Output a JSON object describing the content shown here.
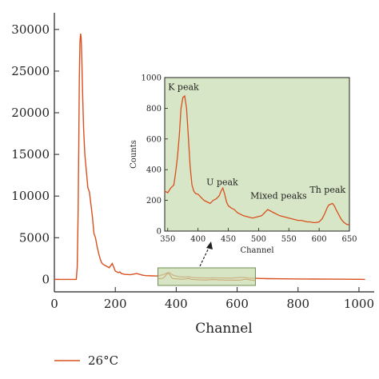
{
  "colors": {
    "series": "#d9501e",
    "inset_bg": "#d7e6c6",
    "inset_border": "#222222",
    "zoom_box_bg": "#c9dcb2",
    "zoom_box_border": "#6f8f55"
  },
  "chart_data": [
    {
      "type": "line",
      "xlabel": "Channel",
      "ylabel": "",
      "xlim": [
        0,
        1050
      ],
      "ylim": [
        -1500,
        32000
      ],
      "xticks": [
        0,
        200,
        400,
        600,
        800,
        1000
      ],
      "yticks": [
        0,
        5000,
        10000,
        15000,
        20000,
        25000,
        30000
      ],
      "xtick_labels": [
        "0",
        "200",
        "400",
        "600",
        "800",
        "1000"
      ],
      "ytick_labels": [
        "0",
        "5000",
        "10000",
        "15000",
        "20000",
        "25000",
        "30000"
      ],
      "legend": {
        "placement": "bottom-left",
        "entries": [
          "26°C"
        ]
      },
      "series": [
        {
          "name": "26°C",
          "x": [
            0,
            60,
            72,
            75,
            78,
            80,
            82,
            84,
            86,
            88,
            90,
            93,
            96,
            100,
            105,
            110,
            115,
            120,
            125,
            130,
            135,
            140,
            145,
            150,
            155,
            160,
            170,
            180,
            190,
            200,
            210,
            215,
            220,
            230,
            250,
            270,
            290,
            300,
            320,
            340,
            360,
            375,
            390,
            410,
            430,
            440,
            460,
            480,
            500,
            520,
            540,
            560,
            580,
            600,
            620,
            640,
            660,
            680,
            700,
            750,
            800,
            850,
            900,
            950,
            1000,
            1020
          ],
          "y": [
            0,
            0,
            0,
            1500,
            8000,
            16000,
            24000,
            28500,
            29500,
            29000,
            26500,
            22000,
            18000,
            15000,
            13000,
            11000,
            10500,
            9000,
            7500,
            5500,
            5000,
            4000,
            3200,
            2500,
            2000,
            1800,
            1600,
            1400,
            1900,
            1000,
            800,
            900,
            700,
            600,
            550,
            700,
            500,
            450,
            420,
            400,
            600,
            850,
            500,
            300,
            280,
            300,
            200,
            180,
            160,
            190,
            170,
            160,
            150,
            200,
            250,
            150,
            120,
            100,
            80,
            60,
            50,
            40,
            30,
            20,
            10,
            0
          ]
        }
      ],
      "zoom_region": {
        "x": [
          350,
          650
        ],
        "y": [
          0,
          1000
        ]
      }
    },
    {
      "type": "line",
      "xlabel": "Channel",
      "ylabel": "Counts",
      "xlim": [
        345,
        650
      ],
      "ylim": [
        0,
        1000
      ],
      "xticks": [
        350,
        400,
        450,
        500,
        550,
        600,
        650
      ],
      "yticks": [
        0,
        200,
        400,
        600,
        800,
        1000
      ],
      "xtick_labels": [
        "350",
        "400",
        "450",
        "500",
        "550",
        "600",
        "650"
      ],
      "ytick_labels": [
        "0",
        "200",
        "400",
        "600",
        "800",
        "1000"
      ],
      "annotations": [
        {
          "text": "K peak",
          "x": 376,
          "y": 920
        },
        {
          "text": "U peak",
          "x": 440,
          "y": 300
        },
        {
          "text": "Mixed peaks",
          "x": 533,
          "y": 210
        },
        {
          "text": "Th peak",
          "x": 614,
          "y": 250
        }
      ],
      "series": [
        {
          "x": [
            345,
            350,
            355,
            360,
            363,
            366,
            369,
            372,
            375,
            378,
            381,
            384,
            387,
            390,
            393,
            396,
            400,
            405,
            410,
            415,
            420,
            425,
            430,
            435,
            438,
            441,
            444,
            447,
            450,
            455,
            460,
            465,
            470,
            475,
            480,
            485,
            490,
            495,
            500,
            505,
            510,
            515,
            520,
            525,
            530,
            535,
            540,
            545,
            550,
            555,
            560,
            565,
            570,
            575,
            580,
            585,
            590,
            595,
            600,
            605,
            610,
            613,
            616,
            619,
            622,
            625,
            628,
            632,
            636,
            640,
            645,
            650
          ],
          "y": [
            260,
            250,
            280,
            300,
            380,
            480,
            620,
            800,
            870,
            880,
            800,
            620,
            420,
            300,
            260,
            245,
            240,
            220,
            200,
            190,
            180,
            200,
            210,
            230,
            260,
            280,
            240,
            190,
            165,
            150,
            140,
            120,
            110,
            100,
            95,
            90,
            85,
            90,
            95,
            100,
            120,
            140,
            130,
            120,
            110,
            100,
            95,
            90,
            85,
            80,
            75,
            70,
            70,
            65,
            60,
            60,
            55,
            55,
            60,
            80,
            120,
            150,
            170,
            175,
            180,
            165,
            140,
            110,
            80,
            60,
            45,
            40
          ]
        }
      ]
    }
  ]
}
